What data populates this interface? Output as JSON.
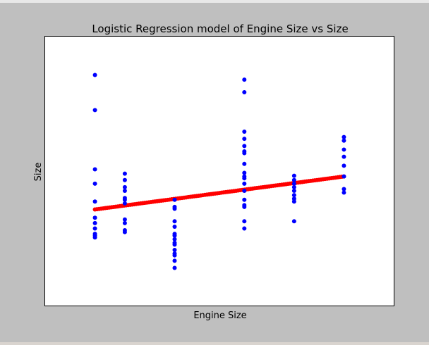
{
  "window": {
    "background": "#bfbfbf"
  },
  "chart_data": {
    "type": "scatter",
    "title": "Logistic Regression model of Engine Size vs Size",
    "xlabel": "Engine Size",
    "ylabel": "Size",
    "xticks": "hidden",
    "yticks": "hidden",
    "grid": false,
    "legend": "none",
    "xlim": [
      0.0,
      7.0
    ],
    "ylim": [
      0.0,
      7.5
    ],
    "series": [
      {
        "mark": "scatter",
        "color": "#0000ff",
        "points": [
          [
            1.0,
            6.43
          ],
          [
            1.0,
            5.45
          ],
          [
            1.0,
            3.8
          ],
          [
            1.0,
            3.4
          ],
          [
            1.0,
            2.9
          ],
          [
            1.0,
            2.45
          ],
          [
            1.0,
            2.3
          ],
          [
            1.0,
            2.15
          ],
          [
            1.0,
            2.0
          ],
          [
            1.0,
            1.9
          ],
          [
            1.0,
            1.95
          ],
          [
            1.6,
            3.68
          ],
          [
            1.6,
            3.5
          ],
          [
            1.6,
            3.3
          ],
          [
            1.6,
            3.2
          ],
          [
            1.6,
            3.0
          ],
          [
            1.6,
            2.95
          ],
          [
            1.6,
            2.85
          ],
          [
            1.6,
            2.4
          ],
          [
            1.6,
            2.3
          ],
          [
            1.6,
            2.1
          ],
          [
            1.6,
            2.05
          ],
          [
            2.6,
            2.95
          ],
          [
            2.6,
            2.75
          ],
          [
            2.6,
            2.7
          ],
          [
            2.6,
            2.35
          ],
          [
            2.6,
            2.2
          ],
          [
            2.6,
            2.0
          ],
          [
            2.6,
            1.95
          ],
          [
            2.6,
            1.85
          ],
          [
            2.6,
            1.75
          ],
          [
            2.6,
            1.7
          ],
          [
            2.6,
            1.55
          ],
          [
            2.6,
            1.45
          ],
          [
            2.6,
            1.4
          ],
          [
            2.6,
            1.25
          ],
          [
            2.6,
            1.05
          ],
          [
            4.0,
            6.3
          ],
          [
            4.0,
            5.95
          ],
          [
            4.0,
            4.85
          ],
          [
            4.0,
            4.65
          ],
          [
            4.0,
            4.45
          ],
          [
            4.0,
            4.3
          ],
          [
            4.0,
            4.25
          ],
          [
            4.0,
            3.95
          ],
          [
            4.0,
            3.7
          ],
          [
            4.0,
            3.6
          ],
          [
            4.0,
            3.55
          ],
          [
            4.0,
            3.4
          ],
          [
            4.0,
            3.2
          ],
          [
            4.0,
            2.95
          ],
          [
            4.0,
            2.8
          ],
          [
            4.0,
            2.75
          ],
          [
            4.0,
            2.35
          ],
          [
            4.0,
            2.15
          ],
          [
            5.0,
            3.62
          ],
          [
            5.0,
            3.5
          ],
          [
            5.0,
            3.4
          ],
          [
            5.0,
            3.3
          ],
          [
            5.0,
            3.2
          ],
          [
            5.0,
            3.08
          ],
          [
            5.0,
            2.98
          ],
          [
            5.0,
            2.9
          ],
          [
            5.0,
            2.35
          ],
          [
            6.0,
            4.7
          ],
          [
            6.0,
            4.6
          ],
          [
            6.0,
            4.35
          ],
          [
            6.0,
            4.15
          ],
          [
            6.0,
            3.9
          ],
          [
            6.0,
            3.6
          ],
          [
            6.0,
            3.25
          ],
          [
            6.0,
            3.15
          ]
        ]
      },
      {
        "mark": "scatter",
        "color": "#ff0000",
        "fit": {
          "x_start": 1.0,
          "x_end": 6.0,
          "y_start": 2.68,
          "y_end": 3.6,
          "samples": 120
        }
      }
    ]
  }
}
